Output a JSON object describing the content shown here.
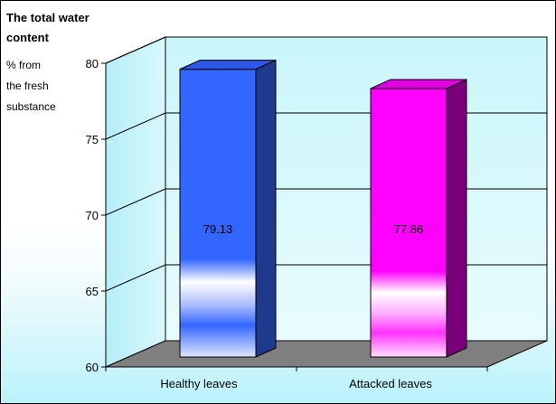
{
  "chart_data": {
    "type": "bar",
    "title": "The total water content",
    "ylabel": "% from the fresh substance",
    "categories": [
      "Healthy leaves",
      "Attacked leaves"
    ],
    "values": [
      79.13,
      77.86
    ],
    "value_labels": [
      "79.13",
      "77.86"
    ],
    "ylim": [
      60,
      80
    ],
    "yticks": [
      "80",
      "75",
      "70",
      "65",
      "60"
    ],
    "grid": true,
    "three_d": true,
    "colors": {
      "healthy_front": "#3366ff",
      "healthy_side": "#1f3a8c",
      "healthy_top": "#2f57e6",
      "attacked_front": "#ff00ff",
      "attacked_side": "#7a007a",
      "attacked_top": "#e000e0",
      "back_wall": "#c9f6fb",
      "floor": "#7f7f7f"
    }
  }
}
